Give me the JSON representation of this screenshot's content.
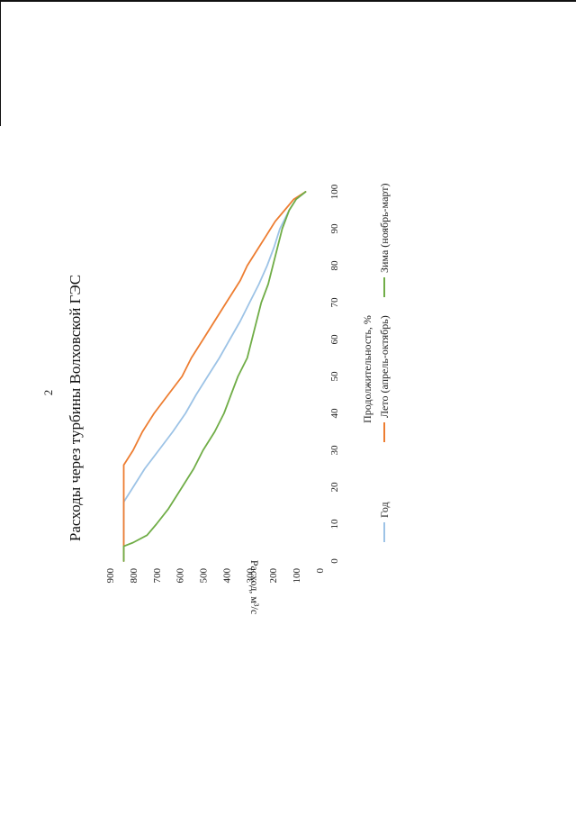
{
  "page": {
    "number": "2"
  },
  "chart_data": {
    "type": "line",
    "title": "Расходы через турбины Волховской ГЭС",
    "xlabel": "Продолжительность, %",
    "ylabel": "Расход, м³/с",
    "xlim": [
      0,
      100
    ],
    "ylim": [
      0,
      900
    ],
    "x_ticks": [
      "0",
      "10",
      "20",
      "30",
      "40",
      "50",
      "60",
      "70",
      "80",
      "90",
      "100"
    ],
    "y_ticks": [
      "0",
      "100",
      "200",
      "300",
      "400",
      "500",
      "600",
      "700",
      "800",
      "900"
    ],
    "grid": false,
    "legend_position": "bottom",
    "orientation": "page rotated 90° counter-clockwise",
    "series": [
      {
        "name": "Год",
        "color": "#9dc3e6",
        "points": [
          [
            0,
            840
          ],
          [
            16,
            840
          ],
          [
            20,
            800
          ],
          [
            25,
            750
          ],
          [
            30,
            690
          ],
          [
            35,
            630
          ],
          [
            40,
            575
          ],
          [
            45,
            530
          ],
          [
            50,
            480
          ],
          [
            55,
            430
          ],
          [
            60,
            385
          ],
          [
            65,
            340
          ],
          [
            70,
            300
          ],
          [
            75,
            260
          ],
          [
            80,
            225
          ],
          [
            85,
            195
          ],
          [
            90,
            170
          ],
          [
            95,
            130
          ],
          [
            98,
            100
          ],
          [
            100,
            60
          ]
        ]
      },
      {
        "name": "Лето (апрель-октябрь)",
        "color": "#ed7d31",
        "points": [
          [
            0,
            840
          ],
          [
            26,
            840
          ],
          [
            30,
            800
          ],
          [
            35,
            760
          ],
          [
            38,
            730
          ],
          [
            40,
            710
          ],
          [
            45,
            650
          ],
          [
            50,
            590
          ],
          [
            55,
            550
          ],
          [
            60,
            500
          ],
          [
            65,
            450
          ],
          [
            70,
            400
          ],
          [
            74,
            360
          ],
          [
            76,
            340
          ],
          [
            80,
            310
          ],
          [
            85,
            260
          ],
          [
            88,
            230
          ],
          [
            92,
            190
          ],
          [
            95,
            150
          ],
          [
            98,
            110
          ],
          [
            100,
            60
          ]
        ]
      },
      {
        "name": "Зима (ноябрь-март)",
        "color": "#70ad47",
        "points": [
          [
            0,
            840
          ],
          [
            4,
            840
          ],
          [
            5,
            800
          ],
          [
            7,
            740
          ],
          [
            10,
            700
          ],
          [
            14,
            650
          ],
          [
            20,
            590
          ],
          [
            25,
            540
          ],
          [
            30,
            500
          ],
          [
            35,
            450
          ],
          [
            40,
            410
          ],
          [
            45,
            380
          ],
          [
            50,
            350
          ],
          [
            55,
            310
          ],
          [
            60,
            290
          ],
          [
            65,
            270
          ],
          [
            70,
            250
          ],
          [
            75,
            220
          ],
          [
            80,
            200
          ],
          [
            85,
            180
          ],
          [
            90,
            160
          ],
          [
            95,
            130
          ],
          [
            98,
            100
          ],
          [
            100,
            60
          ]
        ]
      }
    ]
  }
}
